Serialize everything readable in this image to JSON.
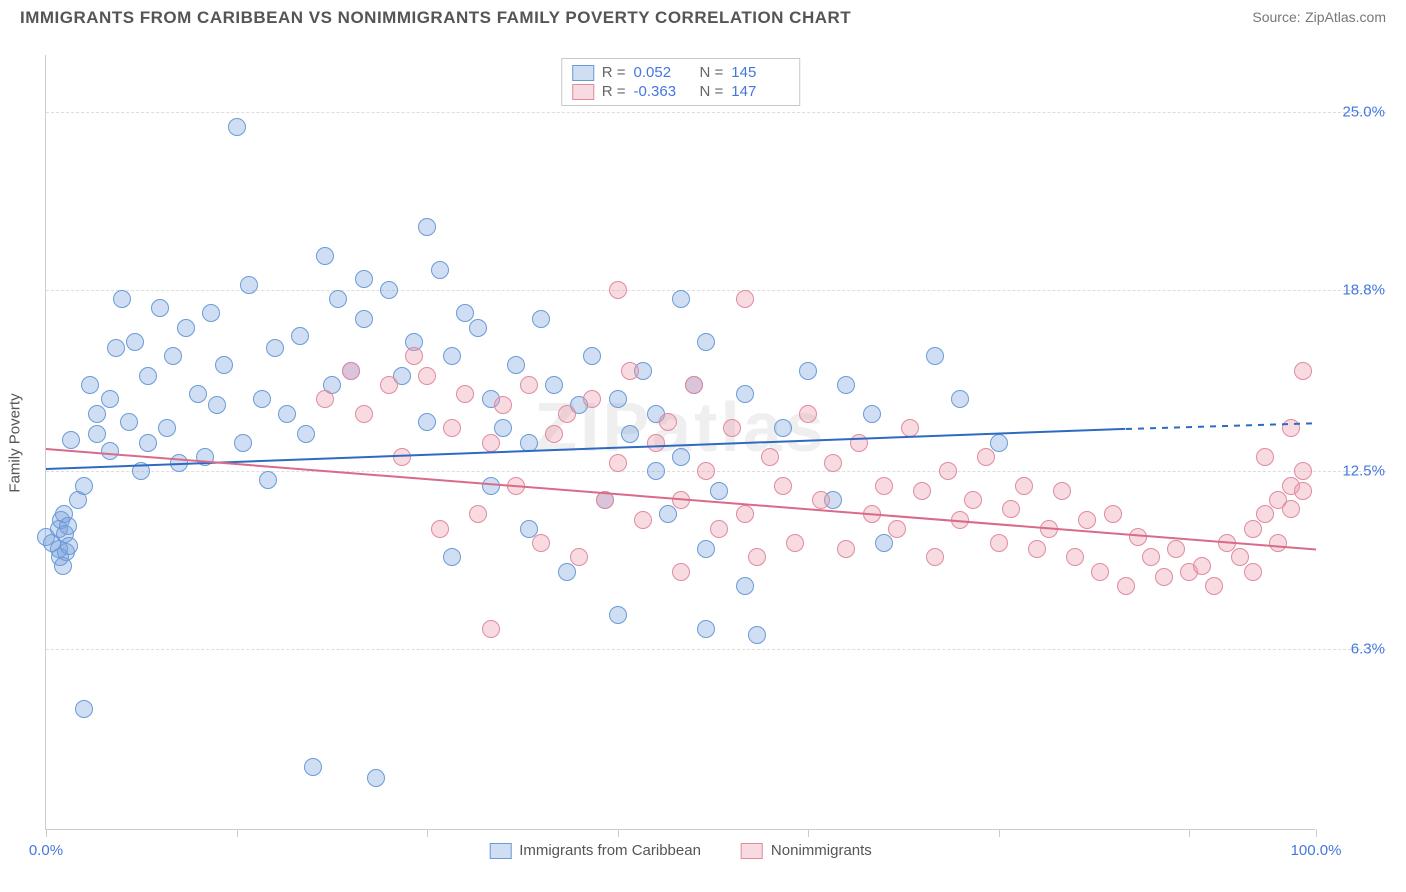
{
  "title": "IMMIGRANTS FROM CARIBBEAN VS NONIMMIGRANTS FAMILY POVERTY CORRELATION CHART",
  "source_label": "Source:",
  "source_name": "ZipAtlas.com",
  "watermark": "ZIPatlas",
  "ylabel": "Family Poverty",
  "chart": {
    "type": "scatter",
    "xlim": [
      0,
      100
    ],
    "ylim": [
      0,
      27
    ],
    "y_ticks": [
      6.3,
      12.5,
      18.8,
      25.0
    ],
    "y_tick_labels": [
      "6.3%",
      "12.5%",
      "18.8%",
      "25.0%"
    ],
    "x_ticks": [
      0,
      15,
      30,
      45,
      60,
      75,
      90,
      100
    ],
    "x_tick_labels": {
      "0": "0.0%",
      "100": "100.0%"
    },
    "grid_color": "#dddddd",
    "axis_color": "#cccccc",
    "background_color": "#ffffff",
    "tick_label_color": "#4477dd",
    "point_radius": 9,
    "point_stroke_width": 1,
    "trend_line_width": 2
  },
  "series": [
    {
      "key": "immigrants",
      "label": "Immigrants from Caribbean",
      "fill": "rgba(120,160,220,0.35)",
      "stroke": "#6a9bd8",
      "trend_color": "#2e6bc0",
      "trend_dash_color": "#2e6bc0",
      "r_label": "R =",
      "r_value": "0.052",
      "n_label": "N =",
      "n_value": "145",
      "trend": {
        "x1": 0,
        "y1": 12.6,
        "x2": 85,
        "y2": 14.0,
        "x2_ext": 100,
        "y2_ext": 14.2
      },
      "points": [
        [
          0,
          10.2
        ],
        [
          0.5,
          10.0
        ],
        [
          1,
          9.8
        ],
        [
          1,
          10.5
        ],
        [
          1.1,
          9.5
        ],
        [
          1.2,
          10.8
        ],
        [
          1.3,
          9.2
        ],
        [
          1.4,
          11.0
        ],
        [
          1.5,
          10.3
        ],
        [
          1.6,
          9.7
        ],
        [
          1.7,
          10.6
        ],
        [
          1.8,
          9.9
        ],
        [
          2,
          13.6
        ],
        [
          2.5,
          11.5
        ],
        [
          3,
          4.2
        ],
        [
          3,
          12.0
        ],
        [
          3.5,
          15.5
        ],
        [
          4,
          13.8
        ],
        [
          4,
          14.5
        ],
        [
          5,
          15.0
        ],
        [
          5,
          13.2
        ],
        [
          5.5,
          16.8
        ],
        [
          6,
          18.5
        ],
        [
          6.5,
          14.2
        ],
        [
          7,
          17.0
        ],
        [
          7.5,
          12.5
        ],
        [
          8,
          15.8
        ],
        [
          8,
          13.5
        ],
        [
          9,
          18.2
        ],
        [
          9.5,
          14.0
        ],
        [
          10,
          16.5
        ],
        [
          10.5,
          12.8
        ],
        [
          11,
          17.5
        ],
        [
          12,
          15.2
        ],
        [
          12.5,
          13.0
        ],
        [
          13,
          18.0
        ],
        [
          13.5,
          14.8
        ],
        [
          14,
          16.2
        ],
        [
          15,
          24.5
        ],
        [
          15.5,
          13.5
        ],
        [
          16,
          19.0
        ],
        [
          17,
          15.0
        ],
        [
          17.5,
          12.2
        ],
        [
          18,
          16.8
        ],
        [
          19,
          14.5
        ],
        [
          20,
          17.2
        ],
        [
          20.5,
          13.8
        ],
        [
          21,
          2.2
        ],
        [
          22,
          20.0
        ],
        [
          22.5,
          15.5
        ],
        [
          23,
          18.5
        ],
        [
          24,
          16.0
        ],
        [
          25,
          19.2
        ],
        [
          25,
          17.8
        ],
        [
          26,
          1.8
        ],
        [
          27,
          18.8
        ],
        [
          28,
          15.8
        ],
        [
          29,
          17.0
        ],
        [
          30,
          21.0
        ],
        [
          30,
          14.2
        ],
        [
          31,
          19.5
        ],
        [
          32,
          9.5
        ],
        [
          32,
          16.5
        ],
        [
          33,
          18.0
        ],
        [
          34,
          17.5
        ],
        [
          35,
          12.0
        ],
        [
          35,
          15.0
        ],
        [
          36,
          14.0
        ],
        [
          37,
          16.2
        ],
        [
          38,
          10.5
        ],
        [
          38,
          13.5
        ],
        [
          39,
          17.8
        ],
        [
          40,
          15.5
        ],
        [
          41,
          9.0
        ],
        [
          42,
          14.8
        ],
        [
          43,
          16.5
        ],
        [
          44,
          11.5
        ],
        [
          45,
          15.0
        ],
        [
          45,
          7.5
        ],
        [
          46,
          13.8
        ],
        [
          47,
          16.0
        ],
        [
          48,
          12.5
        ],
        [
          48,
          14.5
        ],
        [
          49,
          11.0
        ],
        [
          50,
          18.5
        ],
        [
          50,
          13.0
        ],
        [
          51,
          15.5
        ],
        [
          52,
          9.8
        ],
        [
          52,
          17.0
        ],
        [
          53,
          11.8
        ],
        [
          55,
          15.2
        ],
        [
          55,
          8.5
        ],
        [
          56,
          6.8
        ],
        [
          58,
          14.0
        ],
        [
          60,
          16.0
        ],
        [
          62,
          11.5
        ],
        [
          63,
          15.5
        ],
        [
          65,
          14.5
        ],
        [
          66,
          10.0
        ],
        [
          70,
          16.5
        ],
        [
          72,
          15.0
        ],
        [
          75,
          13.5
        ],
        [
          52,
          7.0
        ]
      ]
    },
    {
      "key": "nonimmigrants",
      "label": "Nonimmigrants",
      "fill": "rgba(235,150,170,0.35)",
      "stroke": "#e08ba0",
      "trend_color": "#d96b89",
      "r_label": "R =",
      "r_value": "-0.363",
      "n_label": "N =",
      "n_value": "147",
      "trend": {
        "x1": 0,
        "y1": 13.3,
        "x2": 100,
        "y2": 9.8
      },
      "points": [
        [
          22,
          15.0
        ],
        [
          24,
          16.0
        ],
        [
          25,
          14.5
        ],
        [
          27,
          15.5
        ],
        [
          28,
          13.0
        ],
        [
          29,
          16.5
        ],
        [
          30,
          15.8
        ],
        [
          31,
          10.5
        ],
        [
          32,
          14.0
        ],
        [
          33,
          15.2
        ],
        [
          34,
          11.0
        ],
        [
          35,
          7.0
        ],
        [
          35,
          13.5
        ],
        [
          36,
          14.8
        ],
        [
          37,
          12.0
        ],
        [
          38,
          15.5
        ],
        [
          39,
          10.0
        ],
        [
          40,
          13.8
        ],
        [
          41,
          14.5
        ],
        [
          42,
          9.5
        ],
        [
          43,
          15.0
        ],
        [
          44,
          11.5
        ],
        [
          45,
          12.8
        ],
        [
          46,
          16.0
        ],
        [
          47,
          10.8
        ],
        [
          48,
          13.5
        ],
        [
          49,
          14.2
        ],
        [
          50,
          9.0
        ],
        [
          50,
          11.5
        ],
        [
          51,
          15.5
        ],
        [
          52,
          12.5
        ],
        [
          53,
          10.5
        ],
        [
          54,
          14.0
        ],
        [
          55,
          11.0
        ],
        [
          55,
          18.5
        ],
        [
          56,
          9.5
        ],
        [
          57,
          13.0
        ],
        [
          58,
          12.0
        ],
        [
          59,
          10.0
        ],
        [
          60,
          14.5
        ],
        [
          61,
          11.5
        ],
        [
          62,
          12.8
        ],
        [
          63,
          9.8
        ],
        [
          64,
          13.5
        ],
        [
          65,
          11.0
        ],
        [
          66,
          12.0
        ],
        [
          67,
          10.5
        ],
        [
          68,
          14.0
        ],
        [
          69,
          11.8
        ],
        [
          70,
          9.5
        ],
        [
          71,
          12.5
        ],
        [
          72,
          10.8
        ],
        [
          73,
          11.5
        ],
        [
          74,
          13.0
        ],
        [
          75,
          10.0
        ],
        [
          76,
          11.2
        ],
        [
          77,
          12.0
        ],
        [
          78,
          9.8
        ],
        [
          79,
          10.5
        ],
        [
          80,
          11.8
        ],
        [
          81,
          9.5
        ],
        [
          82,
          10.8
        ],
        [
          83,
          9.0
        ],
        [
          84,
          11.0
        ],
        [
          85,
          8.5
        ],
        [
          86,
          10.2
        ],
        [
          87,
          9.5
        ],
        [
          88,
          8.8
        ],
        [
          89,
          9.8
        ],
        [
          90,
          9.0
        ],
        [
          91,
          9.2
        ],
        [
          92,
          8.5
        ],
        [
          93,
          10.0
        ],
        [
          94,
          9.5
        ],
        [
          95,
          10.5
        ],
        [
          95,
          9.0
        ],
        [
          96,
          11.0
        ],
        [
          96,
          13.0
        ],
        [
          97,
          11.5
        ],
        [
          97,
          10.0
        ],
        [
          98,
          12.0
        ],
        [
          98,
          11.2
        ],
        [
          98,
          14.0
        ],
        [
          99,
          11.8
        ],
        [
          99,
          12.5
        ],
        [
          99,
          16.0
        ],
        [
          45,
          18.8
        ]
      ]
    }
  ]
}
